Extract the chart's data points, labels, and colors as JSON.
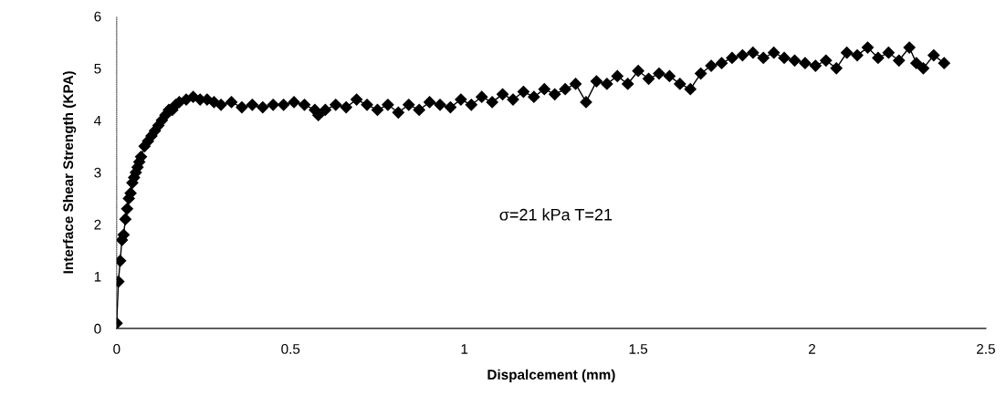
{
  "chart_data": {
    "type": "line",
    "xlabel": "Dispalcement (mm)",
    "ylabel": "Interface Shear Strength (KPA)",
    "annotations": [
      "σ=21 kPa T=21"
    ],
    "xlim": [
      0,
      2.5
    ],
    "xticks": [
      0,
      0.5,
      1,
      1.5,
      2,
      2.5
    ],
    "ylim": [
      0,
      6
    ],
    "yticks": [
      0,
      1,
      2,
      3,
      4,
      5,
      6
    ],
    "grid": false,
    "marker": "diamond",
    "line_style": "solid",
    "series": [
      {
        "color": "#000000",
        "x": [
          0,
          0.005,
          0.01,
          0.015,
          0.02,
          0.025,
          0.03,
          0.035,
          0.04,
          0.045,
          0.05,
          0.055,
          0.06,
          0.065,
          0.07,
          0.08,
          0.09,
          0.1,
          0.11,
          0.12,
          0.13,
          0.14,
          0.15,
          0.16,
          0.17,
          0.18,
          0.2,
          0.22,
          0.24,
          0.26,
          0.28,
          0.3,
          0.33,
          0.36,
          0.39,
          0.42,
          0.45,
          0.48,
          0.51,
          0.54,
          0.57,
          0.58,
          0.6,
          0.63,
          0.66,
          0.69,
          0.72,
          0.75,
          0.78,
          0.81,
          0.84,
          0.87,
          0.9,
          0.93,
          0.96,
          0.99,
          1.02,
          1.05,
          1.08,
          1.11,
          1.14,
          1.17,
          1.2,
          1.23,
          1.26,
          1.29,
          1.32,
          1.35,
          1.38,
          1.41,
          1.44,
          1.47,
          1.5,
          1.53,
          1.56,
          1.59,
          1.62,
          1.65,
          1.68,
          1.71,
          1.74,
          1.77,
          1.8,
          1.83,
          1.86,
          1.89,
          1.92,
          1.95,
          1.98,
          2.01,
          2.04,
          2.07,
          2.1,
          2.13,
          2.16,
          2.19,
          2.22,
          2.25,
          2.28,
          2.3,
          2.32,
          2.35,
          2.38
        ],
        "values": [
          0.1,
          0.9,
          1.3,
          1.7,
          1.8,
          2.1,
          2.3,
          2.5,
          2.6,
          2.8,
          2.9,
          3.0,
          3.1,
          3.2,
          3.3,
          3.5,
          3.6,
          3.7,
          3.8,
          3.9,
          4.0,
          4.1,
          4.2,
          4.2,
          4.3,
          4.35,
          4.4,
          4.45,
          4.4,
          4.4,
          4.35,
          4.3,
          4.35,
          4.25,
          4.3,
          4.25,
          4.3,
          4.3,
          4.35,
          4.3,
          4.2,
          4.1,
          4.2,
          4.3,
          4.25,
          4.4,
          4.3,
          4.2,
          4.3,
          4.15,
          4.3,
          4.2,
          4.35,
          4.3,
          4.25,
          4.4,
          4.3,
          4.45,
          4.35,
          4.5,
          4.4,
          4.55,
          4.45,
          4.6,
          4.5,
          4.6,
          4.7,
          4.35,
          4.75,
          4.7,
          4.85,
          4.7,
          4.95,
          4.8,
          4.9,
          4.85,
          4.7,
          4.6,
          4.9,
          5.05,
          5.1,
          5.2,
          5.25,
          5.3,
          5.2,
          5.3,
          5.2,
          5.15,
          5.1,
          5.05,
          5.15,
          5.0,
          5.3,
          5.25,
          5.4,
          5.2,
          5.3,
          5.15,
          5.4,
          5.1,
          5.0,
          5.25,
          5.1
        ]
      }
    ]
  }
}
